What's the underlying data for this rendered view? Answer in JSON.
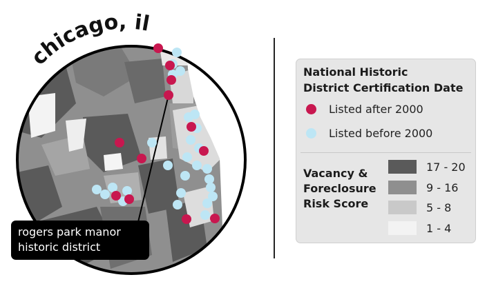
{
  "title": "chicago, il",
  "callout": {
    "line1": "rogers park manor",
    "line2": "historic district"
  },
  "legend": {
    "certification_title_line1": "National Historic",
    "certification_title_line2": "District Certification Date",
    "after_label": "Listed after 2000",
    "before_label": "Listed before 2000",
    "risk_title_line1": "Vacancy &",
    "risk_title_line2": "Foreclosure",
    "risk_title_line3": "Risk Score",
    "risk_classes": [
      {
        "label": "17 - 20",
        "color": "#5a5a5a"
      },
      {
        "label": "9 - 16",
        "color": "#8f8f8f"
      },
      {
        "label": "5 - 8",
        "color": "#c9c9c9"
      },
      {
        "label": "1 - 4",
        "color": "#f3f3f3"
      }
    ]
  },
  "colors": {
    "after_2000": "#c8174f",
    "before_2000": "#bde6f5",
    "lake": "#ffffff",
    "background": "#ffffff"
  }
}
